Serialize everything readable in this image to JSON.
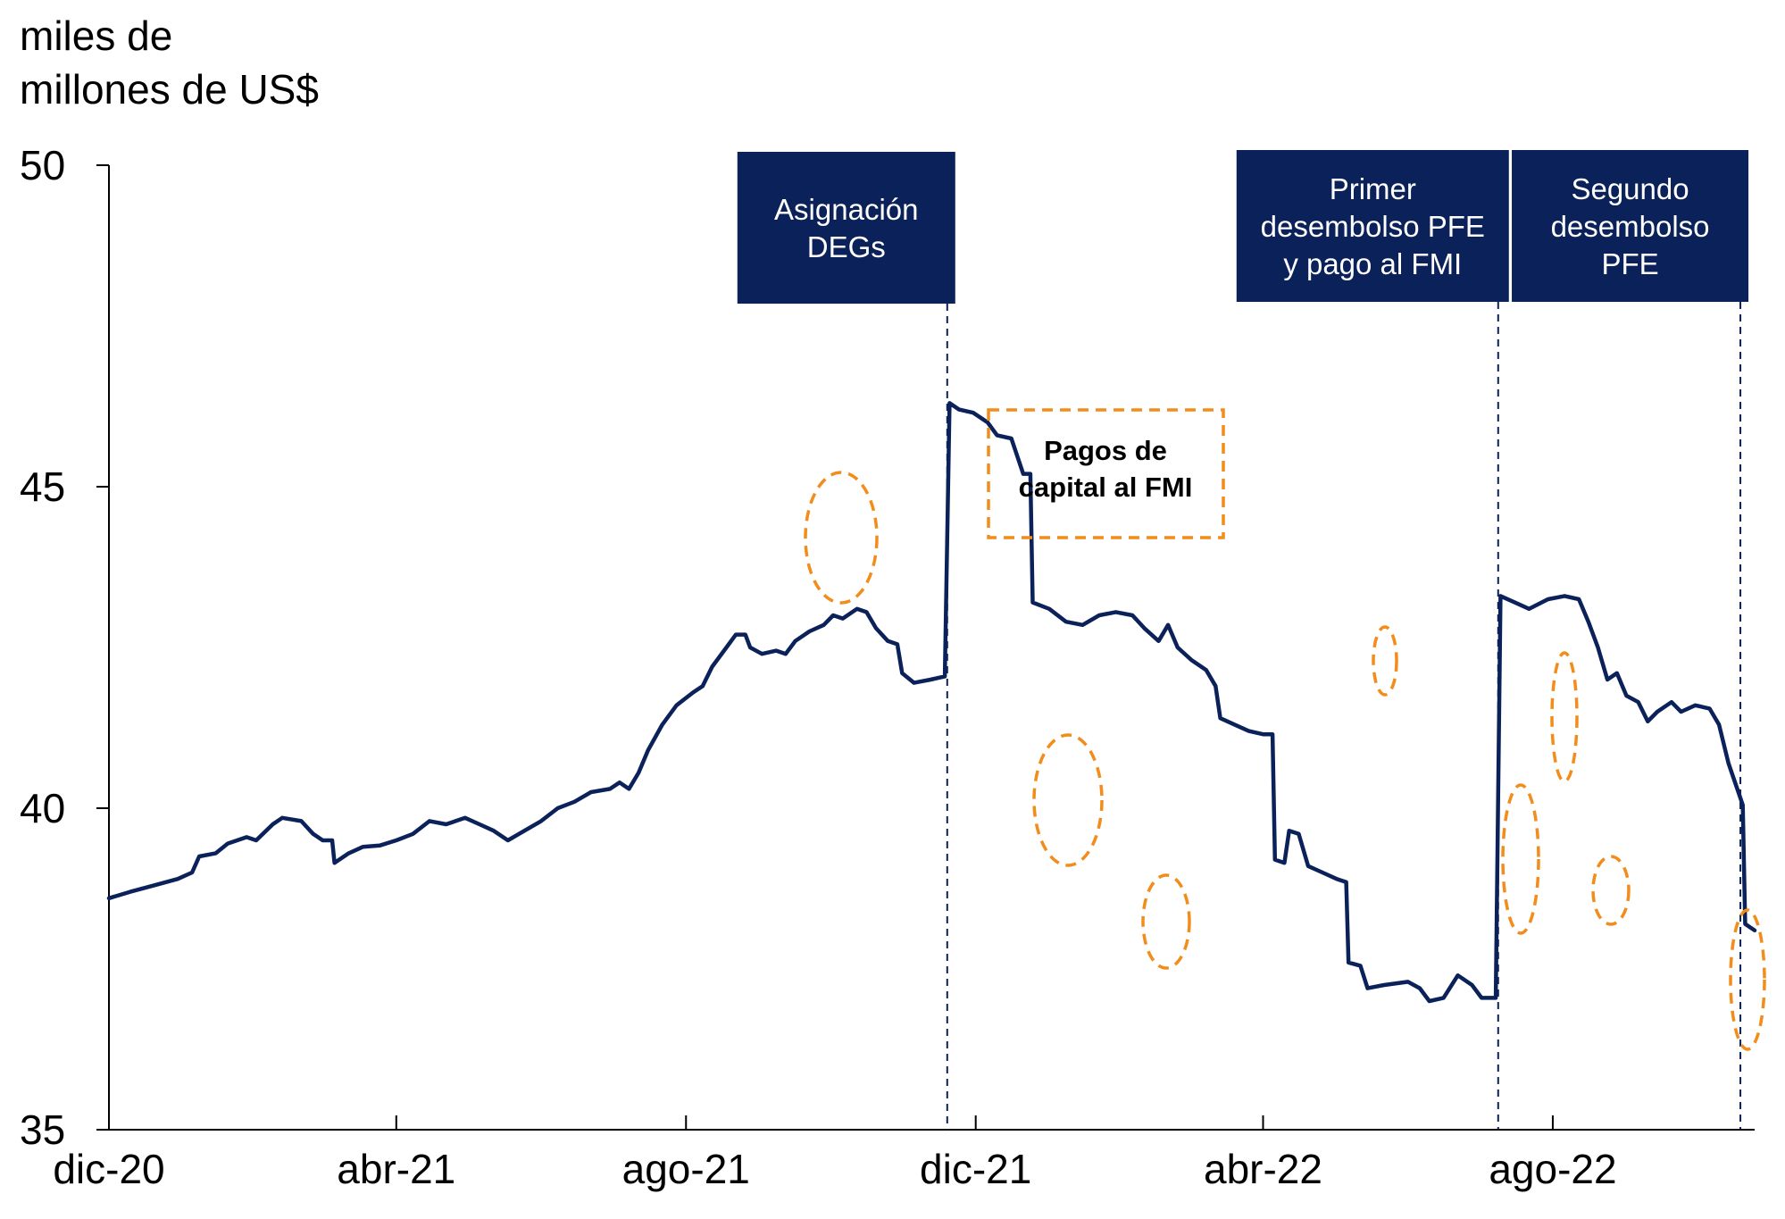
{
  "chart_data": {
    "type": "line",
    "ylabel_lines": [
      "miles de",
      "millones de US$"
    ],
    "ylim": [
      35,
      50
    ],
    "yticks": [
      "50",
      "45",
      "40",
      "35"
    ],
    "xticks": [
      "dic-20",
      "abr-21",
      "ago-21",
      "dic-21",
      "abr-22",
      "ago-22"
    ],
    "x_range": [
      "2020-12-01",
      "2022-10-25"
    ],
    "series": [
      {
        "color": "#0b2159",
        "points": [
          [
            "2020-12-01",
            38.6
          ],
          [
            "2020-12-10",
            38.7
          ],
          [
            "2020-12-20",
            38.8
          ],
          [
            "2020-12-30",
            38.9
          ],
          [
            "2021-01-05",
            39.0
          ],
          [
            "2021-01-08",
            39.25
          ],
          [
            "2021-01-15",
            39.3
          ],
          [
            "2021-01-20",
            39.45
          ],
          [
            "2021-01-28",
            39.55
          ],
          [
            "2021-02-01",
            39.5
          ],
          [
            "2021-02-08",
            39.75
          ],
          [
            "2021-02-12",
            39.85
          ],
          [
            "2021-02-20",
            39.8
          ],
          [
            "2021-02-25",
            39.6
          ],
          [
            "2021-03-01",
            39.5
          ],
          [
            "2021-03-05",
            39.5
          ],
          [
            "2021-03-06",
            39.15
          ],
          [
            "2021-03-12",
            39.3
          ],
          [
            "2021-03-18",
            39.4
          ],
          [
            "2021-03-25",
            39.42
          ],
          [
            "2021-04-01",
            39.5
          ],
          [
            "2021-04-08",
            39.6
          ],
          [
            "2021-04-15",
            39.8
          ],
          [
            "2021-04-22",
            39.75
          ],
          [
            "2021-04-30",
            39.85
          ],
          [
            "2021-05-06",
            39.75
          ],
          [
            "2021-05-12",
            39.65
          ],
          [
            "2021-05-18",
            39.5
          ],
          [
            "2021-05-25",
            39.65
          ],
          [
            "2021-06-01",
            39.8
          ],
          [
            "2021-06-08",
            40.0
          ],
          [
            "2021-06-15",
            40.1
          ],
          [
            "2021-06-22",
            40.25
          ],
          [
            "2021-06-30",
            40.3
          ],
          [
            "2021-07-04",
            40.4
          ],
          [
            "2021-07-08",
            40.3
          ],
          [
            "2021-07-12",
            40.55
          ],
          [
            "2021-07-16",
            40.9
          ],
          [
            "2021-07-22",
            41.3
          ],
          [
            "2021-07-28",
            41.6
          ],
          [
            "2021-08-04",
            41.8
          ],
          [
            "2021-08-08",
            41.9
          ],
          [
            "2021-08-12",
            42.2
          ],
          [
            "2021-08-18",
            42.5
          ],
          [
            "2021-08-22",
            42.7
          ],
          [
            "2021-08-26",
            42.7
          ],
          [
            "2021-08-28",
            42.5
          ],
          [
            "2021-09-02",
            42.4
          ],
          [
            "2021-09-08",
            42.45
          ],
          [
            "2021-09-12",
            42.4
          ],
          [
            "2021-09-16",
            42.6
          ],
          [
            "2021-09-22",
            42.75
          ],
          [
            "2021-09-28",
            42.85
          ],
          [
            "2021-10-02",
            43.0
          ],
          [
            "2021-10-06",
            42.95
          ],
          [
            "2021-10-12",
            43.1
          ],
          [
            "2021-10-16",
            43.05
          ],
          [
            "2021-10-20",
            42.8
          ],
          [
            "2021-10-25",
            42.6
          ],
          [
            "2021-10-29",
            42.55
          ],
          [
            "2021-10-31",
            42.1
          ],
          [
            "2021-11-05",
            41.95
          ],
          [
            "2021-11-12",
            42.0
          ],
          [
            "2021-11-18",
            42.05
          ],
          [
            "2021-11-20",
            46.3
          ],
          [
            "2021-11-24",
            46.2
          ],
          [
            "2021-11-30",
            46.15
          ],
          [
            "2021-12-06",
            46.0
          ],
          [
            "2021-12-10",
            45.8
          ],
          [
            "2021-12-16",
            45.75
          ],
          [
            "2021-12-21",
            45.2
          ],
          [
            "2021-12-24",
            45.2
          ],
          [
            "2021-12-25",
            43.2
          ],
          [
            "2022-01-01",
            43.1
          ],
          [
            "2022-01-08",
            42.9
          ],
          [
            "2022-01-15",
            42.85
          ],
          [
            "2022-01-22",
            43.0
          ],
          [
            "2022-01-29",
            43.05
          ],
          [
            "2022-02-05",
            43.0
          ],
          [
            "2022-02-10",
            42.8
          ],
          [
            "2022-02-16",
            42.6
          ],
          [
            "2022-02-20",
            42.85
          ],
          [
            "2022-02-24",
            42.5
          ],
          [
            "2022-03-02",
            42.3
          ],
          [
            "2022-03-08",
            42.15
          ],
          [
            "2022-03-12",
            41.9
          ],
          [
            "2022-03-14",
            41.4
          ],
          [
            "2022-03-20",
            41.3
          ],
          [
            "2022-03-26",
            41.2
          ],
          [
            "2022-04-01",
            41.15
          ],
          [
            "2022-04-05",
            41.15
          ],
          [
            "2022-04-06",
            39.2
          ],
          [
            "2022-04-10",
            39.15
          ],
          [
            "2022-04-12",
            39.65
          ],
          [
            "2022-04-16",
            39.6
          ],
          [
            "2022-04-20",
            39.1
          ],
          [
            "2022-04-26",
            39.0
          ],
          [
            "2022-05-02",
            38.9
          ],
          [
            "2022-05-06",
            38.85
          ],
          [
            "2022-05-07",
            37.6
          ],
          [
            "2022-05-12",
            37.55
          ],
          [
            "2022-05-15",
            37.2
          ],
          [
            "2022-05-22",
            37.25
          ],
          [
            "2022-06-01",
            37.3
          ],
          [
            "2022-06-06",
            37.2
          ],
          [
            "2022-06-10",
            37.0
          ],
          [
            "2022-06-16",
            37.05
          ],
          [
            "2022-06-22",
            37.4
          ],
          [
            "2022-06-28",
            37.25
          ],
          [
            "2022-07-02",
            37.05
          ],
          [
            "2022-07-08",
            37.05
          ],
          [
            "2022-07-10",
            43.3
          ],
          [
            "2022-07-16",
            43.2
          ],
          [
            "2022-07-22",
            43.1
          ],
          [
            "2022-07-30",
            43.25
          ],
          [
            "2022-08-06",
            43.3
          ],
          [
            "2022-08-12",
            43.25
          ],
          [
            "2022-08-16",
            42.9
          ],
          [
            "2022-08-20",
            42.5
          ],
          [
            "2022-08-24",
            42.0
          ],
          [
            "2022-08-28",
            42.1
          ],
          [
            "2022-09-01",
            41.75
          ],
          [
            "2022-09-06",
            41.65
          ],
          [
            "2022-09-10",
            41.35
          ],
          [
            "2022-09-14",
            41.5
          ],
          [
            "2022-09-20",
            41.65
          ],
          [
            "2022-09-24",
            41.5
          ],
          [
            "2022-09-30",
            41.6
          ],
          [
            "2022-10-06",
            41.55
          ],
          [
            "2022-10-10",
            41.3
          ],
          [
            "2022-10-14",
            40.7
          ],
          [
            "2022-10-20",
            40.05
          ],
          [
            "2022-10-21",
            38.2
          ],
          [
            "2022-10-25",
            38.1
          ]
        ]
      }
    ],
    "annotations": [
      {
        "lines": [
          "Asignación",
          "DEGs"
        ],
        "x": "2021-11-19"
      },
      {
        "lines": [
          "Primer",
          "desembolso PFE",
          "y pago al FMI"
        ],
        "x": "2022-07-09"
      },
      {
        "lines": [
          "Segundo",
          "desembolso",
          "PFE"
        ],
        "x": "2022-10-19"
      }
    ],
    "legend": {
      "lines": [
        "Pagos de",
        "capital al FMI"
      ],
      "style": "orange dashed box"
    },
    "highlight_color": "#f28c1b",
    "box_color": "#0b2159"
  }
}
